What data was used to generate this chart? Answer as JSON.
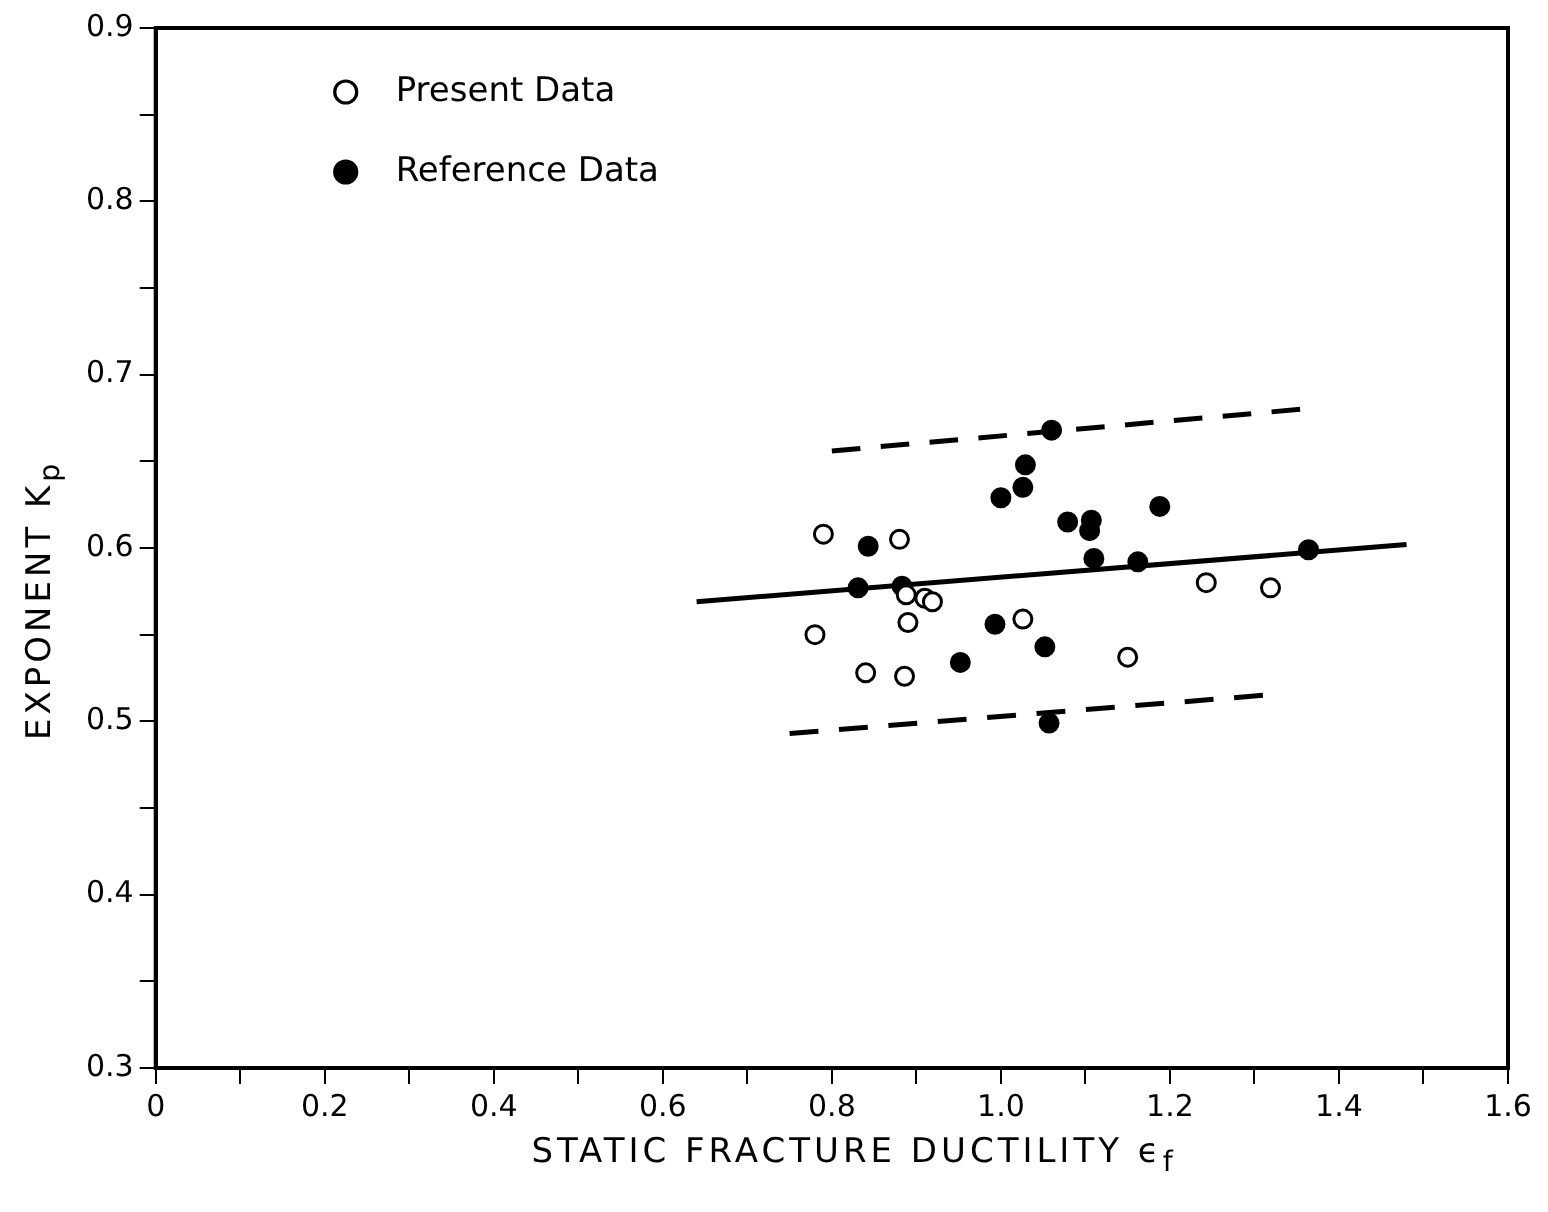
{
  "chart_data": {
    "type": "scatter",
    "xlabel": "STATIC FRACTURE DUCTILITY  ϵ$_{f}$",
    "ylabel": "EXPONENT   K$_{p}$",
    "xlim": [
      0,
      1.6
    ],
    "ylim": [
      0.3,
      0.9
    ],
    "xticks": [
      {
        "value": 0,
        "label": "0"
      },
      {
        "value": 0.1,
        "label": null
      },
      0.2,
      {
        "value": 0.3,
        "label": null
      },
      0.4,
      {
        "value": 0.5,
        "label": null
      },
      0.6,
      {
        "value": 0.7,
        "label": null
      },
      0.8,
      {
        "value": 0.9,
        "label": null
      },
      {
        "value": 1,
        "label": "1.0"
      },
      {
        "value": 1.1,
        "label": null
      },
      1.2,
      {
        "value": 1.3,
        "label": null
      },
      1.4,
      {
        "value": 1.5,
        "label": null
      },
      1.6
    ],
    "yticks": [
      0.3,
      {
        "value": 0.35,
        "label": null
      },
      0.4,
      {
        "value": 0.45,
        "label": null
      },
      0.5,
      {
        "value": 0.55,
        "label": null
      },
      0.6,
      {
        "value": 0.65,
        "label": null
      },
      0.7,
      {
        "value": 0.75,
        "label": null
      },
      0.8,
      {
        "value": 0.85,
        "label": null
      },
      0.9
    ],
    "legend": "top left",
    "marker": "circle",
    "grid": false,
    "series": [
      {
        "name": "Present Data",
        "color": "#ffffff",
        "x": [
          0.79,
          0.88,
          0.78,
          0.89,
          0.84,
          0.886,
          0.888,
          0.91,
          0.919,
          1.026,
          1.15,
          1.243,
          1.319
        ],
        "values": [
          0.608,
          0.605,
          0.55,
          0.557,
          0.528,
          0.526,
          0.573,
          0.571,
          0.569,
          0.559,
          0.537,
          0.58,
          0.577
        ]
      },
      {
        "name": "Reference Data",
        "color": "#000000",
        "x": [
          1.06,
          1.029,
          1.026,
          1.0,
          0.843,
          0.831,
          0.883,
          1.079,
          1.107,
          1.105,
          1.11,
          1.162,
          1.188,
          0.993,
          1.052,
          0.952,
          1.057,
          1.364
        ],
        "values": [
          0.668,
          0.648,
          0.635,
          0.629,
          0.601,
          0.577,
          0.578,
          0.615,
          0.616,
          0.61,
          0.594,
          0.592,
          0.624,
          0.556,
          0.543,
          0.534,
          0.499,
          0.599
        ]
      },
      {
        "type": "line",
        "color": "#000000",
        "line_style": "solid",
        "marker": "none",
        "x": [
          0.64,
          1.48
        ],
        "values": [
          0.569,
          0.602
        ]
      },
      {
        "type": "line",
        "color": "#000000",
        "line_style": "dashed",
        "marker": "none",
        "x": [
          0.8,
          1.354
        ],
        "values": [
          0.656,
          0.68
        ]
      },
      {
        "type": "line",
        "color": "#000000",
        "line_style": "dashed",
        "marker": "none",
        "x": [
          0.75,
          1.31
        ],
        "values": [
          0.493,
          0.515
        ]
      }
    ]
  }
}
